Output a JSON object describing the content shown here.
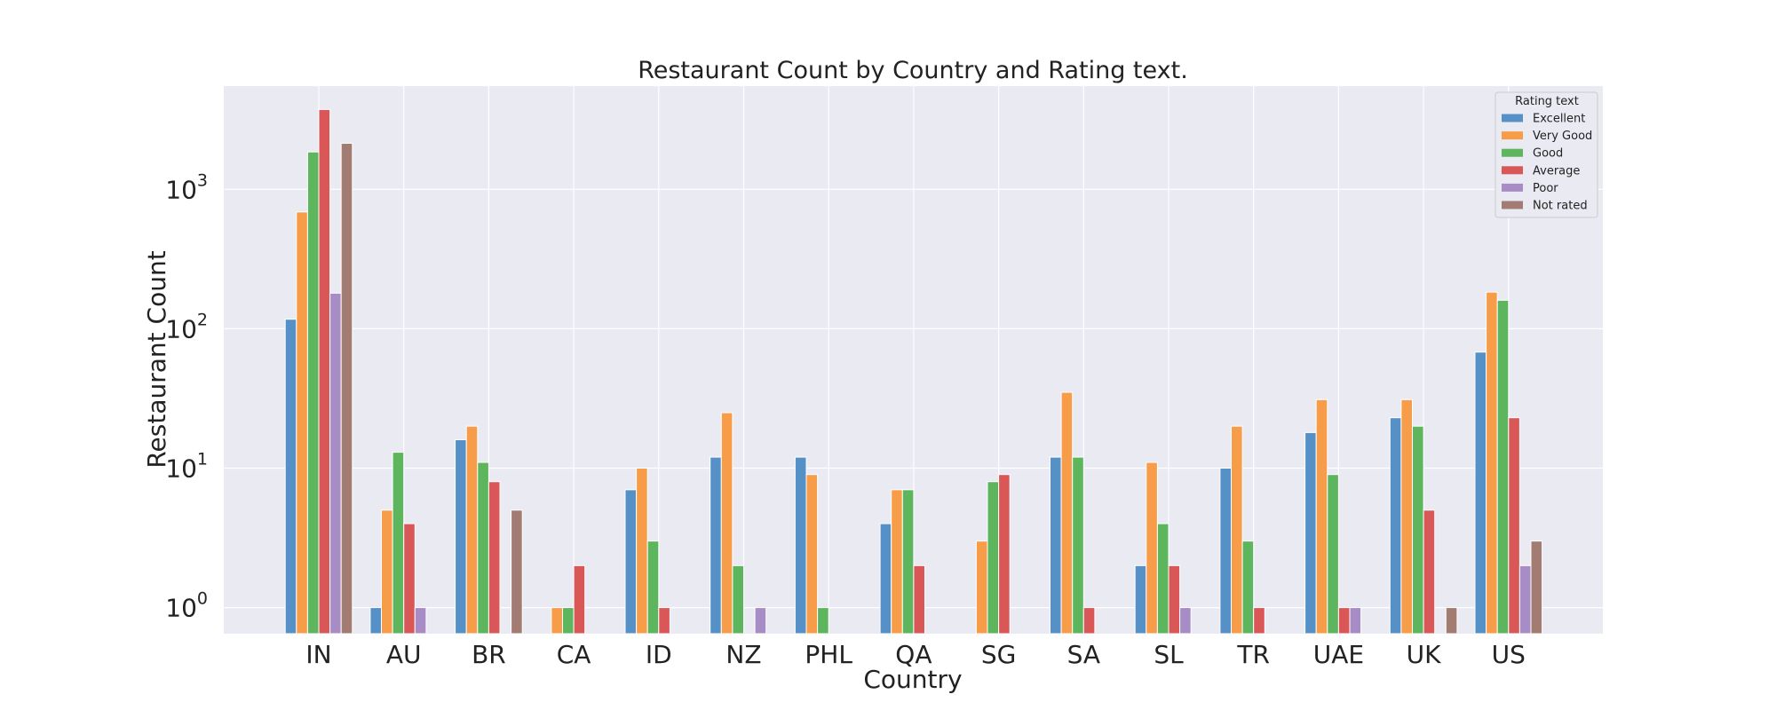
{
  "chart_data": {
    "type": "bar",
    "title": "Restaurant Count by Country and Rating text.",
    "xlabel": "Country",
    "ylabel": "Restaurant Count",
    "yscale": "log",
    "ylim": [
      0.65,
      5500
    ],
    "yticks": [
      {
        "value": 1,
        "base": "10",
        "exp": "0"
      },
      {
        "value": 10,
        "base": "10",
        "exp": "1"
      },
      {
        "value": 100,
        "base": "10",
        "exp": "2"
      },
      {
        "value": 1000,
        "base": "10",
        "exp": "3"
      }
    ],
    "grid": true,
    "legend_position": "top-right",
    "legend_title": "Rating text",
    "categories": [
      "IN",
      "AU",
      "BR",
      "CA",
      "ID",
      "NZ",
      "PHL",
      "QA",
      "SG",
      "SA",
      "SL",
      "TR",
      "UAE",
      "UK",
      "US"
    ],
    "series": [
      {
        "name": "Excellent",
        "color": "#5591c6",
        "values": [
          117,
          1,
          16,
          null,
          7,
          12,
          12,
          4,
          null,
          12,
          2,
          10,
          18,
          23,
          68
        ]
      },
      {
        "name": "Very Good",
        "color": "#f79c48",
        "values": [
          688,
          5,
          20,
          1,
          10,
          25,
          9,
          7,
          3,
          35,
          11,
          20,
          31,
          31,
          183
        ]
      },
      {
        "name": "Good",
        "color": "#5db55d",
        "values": [
          1854,
          13,
          11,
          1,
          3,
          2,
          1,
          7,
          8,
          12,
          4,
          3,
          9,
          20,
          160
        ]
      },
      {
        "name": "Average",
        "color": "#da5758",
        "values": [
          3737,
          4,
          8,
          2,
          1,
          null,
          null,
          2,
          9,
          1,
          2,
          1,
          1,
          5,
          23
        ]
      },
      {
        "name": "Poor",
        "color": "#a78cc6",
        "values": [
          180,
          1,
          null,
          null,
          null,
          1,
          null,
          null,
          null,
          null,
          1,
          null,
          1,
          null,
          2
        ]
      },
      {
        "name": "Not rated",
        "color": "#a27b72",
        "values": [
          2139,
          null,
          5,
          null,
          null,
          null,
          null,
          null,
          null,
          null,
          null,
          null,
          null,
          1,
          3
        ]
      }
    ],
    "colors": {
      "plot_background": "#eaeaf2",
      "grid": "#ffffff",
      "page_background": "#ffffff"
    }
  }
}
